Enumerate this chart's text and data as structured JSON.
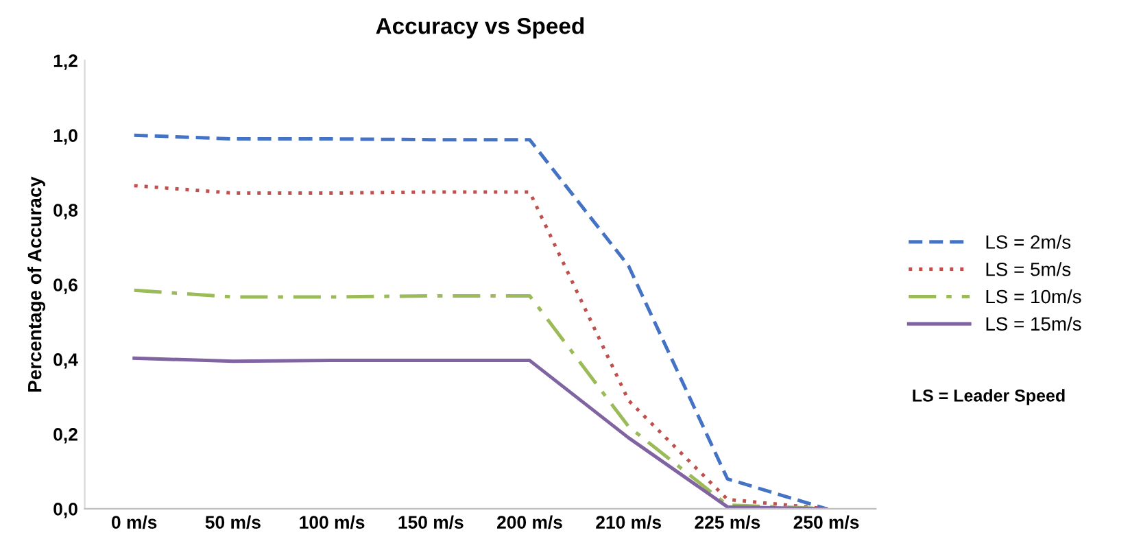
{
  "chart_data": {
    "type": "line",
    "title": "Accuracy vs Speed",
    "ylabel": "Percentage of Accuracy",
    "categories": [
      "0 m/s",
      "50 m/s",
      "100 m/s",
      "150 m/s",
      "200 m/s",
      "210 m/s",
      "225 m/s",
      "250 m/s"
    ],
    "series": [
      {
        "name": "LS = 2m/s",
        "color": "#4472c4",
        "line_style": "dashed",
        "values": [
          1.0,
          0.99,
          0.99,
          0.988,
          0.988,
          0.65,
          0.08,
          0.0
        ]
      },
      {
        "name": "LS = 5m/s",
        "color": "#c0504d",
        "line_style": "dotted",
        "values": [
          0.865,
          0.845,
          0.845,
          0.848,
          0.848,
          0.29,
          0.025,
          0.0
        ]
      },
      {
        "name": "LS = 10m/s",
        "color": "#9bbb59",
        "line_style": "dashdot",
        "values": [
          0.585,
          0.567,
          0.567,
          0.57,
          0.57,
          0.22,
          0.01,
          0.0
        ]
      },
      {
        "name": "LS = 15m/s",
        "color": "#8064a2",
        "line_style": "solid",
        "values": [
          0.403,
          0.395,
          0.397,
          0.397,
          0.397,
          0.19,
          0.005,
          0.0
        ]
      }
    ],
    "ylim": [
      0,
      1.2
    ],
    "yticks": [
      {
        "value": 0,
        "label": "0,0"
      },
      {
        "value": 0.2,
        "label": "0,2"
      },
      {
        "value": 0.4,
        "label": "0,4"
      },
      {
        "value": 0.6,
        "label": "0,6"
      },
      {
        "value": 0.8,
        "label": "0,8"
      },
      {
        "value": 1.0,
        "label": "1,0"
      },
      {
        "value": 1.2,
        "label": "1,2"
      }
    ],
    "legend": "right",
    "grid": false,
    "annotations": [
      "LS = Leader Speed"
    ]
  }
}
